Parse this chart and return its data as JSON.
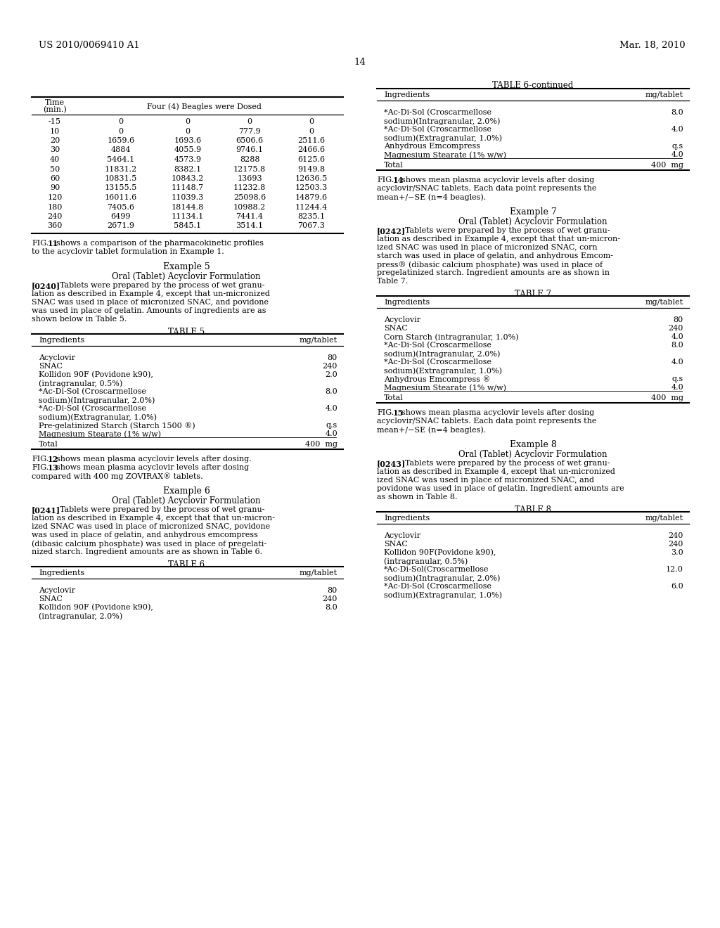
{
  "bg_color": "#ffffff",
  "header_left": "US 2010/0069410 A1",
  "header_right": "Mar. 18, 2010",
  "page_number": "14"
}
